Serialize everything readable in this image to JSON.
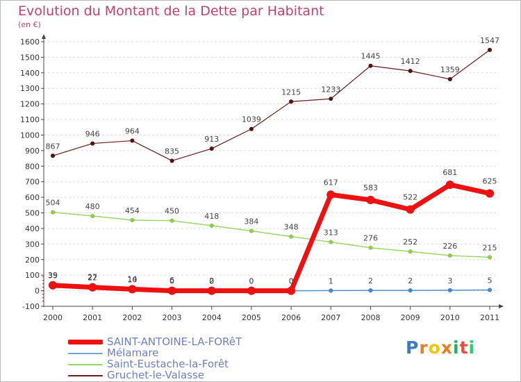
{
  "header": {
    "title": "Evolution du Montant de la Dette par Habitant",
    "unit": "(en €)"
  },
  "logo": {
    "letters": [
      "P",
      "r",
      "o",
      "x",
      "i",
      "t",
      "i"
    ],
    "colors": [
      "#3d79c7",
      "#e67e22",
      "#f1c40f",
      "#e67e22",
      "#27ae60",
      "#e74c3c",
      "#2ecc71"
    ]
  },
  "chart_data": {
    "type": "line",
    "title": "Evolution du Montant de la Dette par Habitant",
    "ylabel": "(en €)",
    "xlabel": "",
    "x": [
      "2000",
      "2001",
      "2002",
      "2003",
      "2004",
      "2005",
      "2006",
      "2007",
      "2008",
      "2009",
      "2010",
      "2011"
    ],
    "ylim": [
      -100,
      1600
    ],
    "yticks": [
      "-100",
      "0",
      "100",
      "200",
      "300",
      "400",
      "500",
      "600",
      "700",
      "800",
      "900",
      "1000",
      "1100",
      "1200",
      "1300",
      "1400",
      "1500",
      "1600"
    ],
    "grid": "horizontal",
    "legend_position": "bottom-left",
    "series": [
      {
        "name": "Gruchet-le-Valasse",
        "color": "#6b1a1a",
        "values": [
          867,
          946,
          964,
          835,
          913,
          1039,
          1215,
          1233,
          1445,
          1412,
          1359,
          1547
        ],
        "labels": [
          "867",
          "946",
          "964",
          "835",
          "913",
          "1039",
          "1215",
          "1233",
          "1445",
          "1412",
          "1359",
          "1547"
        ]
      },
      {
        "name": "Saint-Eustache-la-Forêt",
        "color": "#9bd66a",
        "values": [
          504,
          480,
          454,
          450,
          418,
          384,
          348,
          313,
          276,
          252,
          226,
          215
        ],
        "labels": [
          "504",
          "480",
          "454",
          "450",
          "418",
          "384",
          "348",
          "313",
          "276",
          "252",
          "226",
          "215"
        ]
      },
      {
        "name": "Mélamare",
        "color": "#4f8fd0",
        "values": [
          39,
          27,
          14,
          6,
          2,
          0,
          0,
          1,
          2,
          2,
          3,
          5
        ],
        "labels": [
          "39",
          "27",
          "14",
          "6",
          "2",
          "0",
          "0",
          "1",
          "2",
          "2",
          "3",
          "5"
        ]
      },
      {
        "name": "SAINT-ANTOINE-LA-FORêT",
        "color": "#ee1111",
        "values": [
          35,
          22,
          10,
          0,
          0,
          0,
          0,
          617,
          583,
          522,
          681,
          625
        ],
        "labels": [
          "35",
          "22",
          "10",
          "0",
          "0",
          "0",
          "0",
          "617",
          "583",
          "522",
          "681",
          "625"
        ]
      }
    ]
  },
  "legend": [
    {
      "label": "SAINT-ANTOINE-LA-FORêT",
      "color": "#ee1111",
      "thick": true
    },
    {
      "label": "Mélamare",
      "color": "#6ea6d6",
      "thick": false
    },
    {
      "label": "Saint-Eustache-la-Forêt",
      "color": "#9bd66a",
      "thick": false
    },
    {
      "label": "Gruchet-le-Valasse",
      "color": "#6b1a1a",
      "thick": false
    }
  ]
}
